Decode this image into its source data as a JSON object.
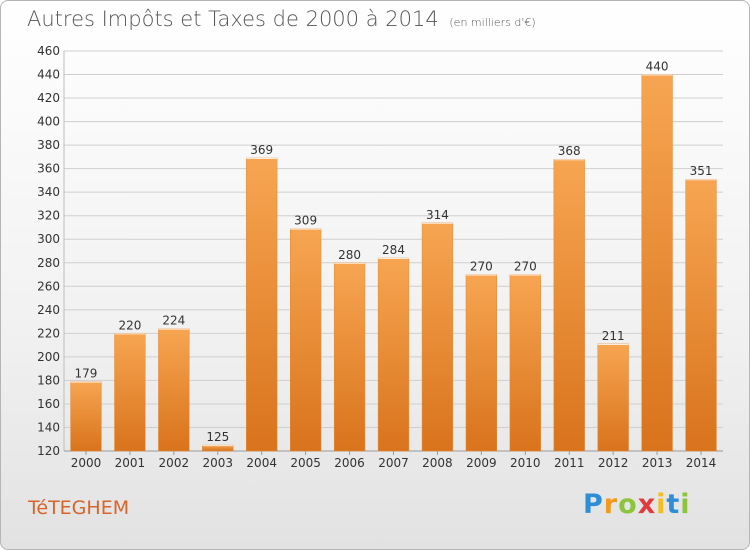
{
  "title": "Autres Impôts et Taxes de 2000 à 2014",
  "unit_note": "(en milliers d'€)",
  "commune": "TéTEGHEM",
  "logo": {
    "text": "Proxiti",
    "letters": [
      {
        "ch": "P",
        "color": "#2e8fd8"
      },
      {
        "ch": "r",
        "color": "#f29a1e"
      },
      {
        "ch": "o",
        "color": "#8cc43c"
      },
      {
        "ch": "x",
        "color": "#e23b3b"
      },
      {
        "ch": "i",
        "color": "#f2c01e"
      },
      {
        "ch": "t",
        "color": "#2e8fd8"
      },
      {
        "ch": "i",
        "color": "#8cc43c"
      }
    ]
  },
  "colors": {
    "bar_top": "#f7a552",
    "bar_bottom": "#d9731c",
    "grid": "#cfcfcf",
    "axis_text": "#333333"
  },
  "chart_data": {
    "type": "bar",
    "categories": [
      "2000",
      "2001",
      "2002",
      "2003",
      "2004",
      "2005",
      "2006",
      "2007",
      "2008",
      "2009",
      "2010",
      "2011",
      "2012",
      "2013",
      "2014"
    ],
    "values": [
      179,
      220,
      224,
      125,
      369,
      309,
      280,
      284,
      314,
      270,
      270,
      368,
      211,
      440,
      351
    ],
    "ylim": [
      120,
      460
    ],
    "yticks": [
      120,
      140,
      160,
      180,
      200,
      220,
      240,
      260,
      280,
      300,
      320,
      340,
      360,
      380,
      400,
      420,
      440,
      460
    ],
    "grid": true
  }
}
